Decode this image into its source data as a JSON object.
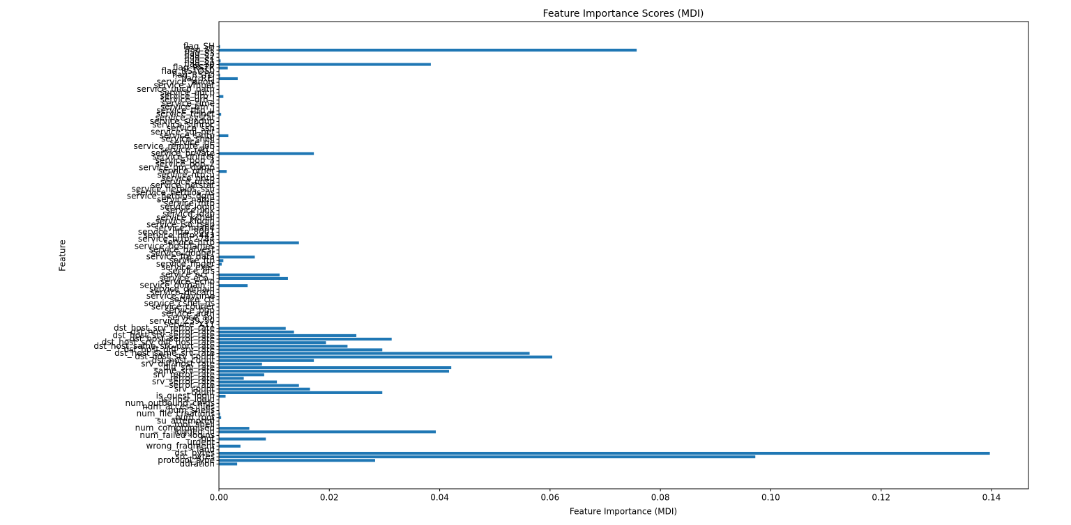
{
  "chart_data": {
    "type": "barh",
    "title": "Feature Importance Scores (MDI)",
    "xlabel": "Feature Importance (MDI)",
    "ylabel": "Feature",
    "color": "#1f77b4",
    "categories": [
      "duration",
      "protocol_type",
      "src_bytes",
      "dst_bytes",
      "land",
      "wrong_fragment",
      "urgent",
      "hot",
      "num_failed_logins",
      "logged_in",
      "num_compromised",
      "root_shell",
      "su_attempted",
      "num_root",
      "num_file_creations",
      "num_shells",
      "num_access_files",
      "num_outbound_cmds",
      "is_host_login",
      "is_guest_login",
      "count",
      "srv_count",
      "serror_rate",
      "srv_serror_rate",
      "rerror_rate",
      "srv_rerror_rate",
      "same_srv_rate",
      "diff_srv_rate",
      "srv_diff_host_rate",
      "dst_host_count",
      "dst_host_srv_count",
      "dst_host_same_srv_rate",
      "dst_host_diff_srv_rate",
      "dst_host_same_src_port_rate",
      "dst_host_srv_diff_host_rate",
      "dst_host_serror_rate",
      "dst_host_srv_serror_rate",
      "dst_host_rerror_rate",
      "dst_host_srv_rerror_rate",
      "service_X11",
      "service_Z39_50",
      "service_aol",
      "service_auth",
      "service_bgp",
      "service_courier",
      "service_csnet_ns",
      "service_ctf",
      "service_daytime",
      "service_discard",
      "service_domain",
      "service_domain_u",
      "service_echo",
      "service_eco_i",
      "service_ecr_i",
      "service_efs",
      "service_exec",
      "service_finger",
      "service_ftp",
      "service_ftp_data",
      "service_gopher",
      "service_harvest",
      "service_hostnames",
      "service_http",
      "service_http_2784",
      "service_http_443",
      "service_http_8001",
      "service_imap4",
      "service_iso_tsap",
      "service_klogin",
      "service_kshell",
      "service_ldap",
      "service_link",
      "service_login",
      "service_mtp",
      "service_name",
      "service_netbios_dgm",
      "service_netbios_ns",
      "service_netbios_ssn",
      "service_netstat",
      "service_nnsp",
      "service_nntp",
      "service_ntp_u",
      "service_other",
      "service_pm_dump",
      "service_pop_2",
      "service_pop_3",
      "service_printer",
      "service_private",
      "service_red_i",
      "service_remote_job",
      "service_rje",
      "service_shell",
      "service_smtp",
      "service_sql_net",
      "service_ssh",
      "service_sunrpc",
      "service_supdup",
      "service_systat",
      "service_telnet",
      "service_tftp_u",
      "service_tim_i",
      "service_time",
      "service_urh_i",
      "service_urp_i",
      "service_uucp",
      "service_uucp_path",
      "service_vmnet",
      "service_whois",
      "flag_REJ",
      "flag_RSTO",
      "flag_RSTOS0",
      "flag_RSTR",
      "flag_S0",
      "flag_S1",
      "flag_S2",
      "flag_S3",
      "flag_SF",
      "flag_SH"
    ],
    "values": [
      0.0033,
      0.0283,
      0.0972,
      0.1397,
      0,
      0.0039,
      0,
      0.0085,
      0,
      0.0393,
      0.0055,
      0.0001,
      0,
      0.0004,
      0.0002,
      0,
      0,
      0,
      0,
      0.0012,
      0.0296,
      0.0165,
      0.0145,
      0.0105,
      0.0045,
      0.0082,
      0.0417,
      0.0421,
      0.0078,
      0.0172,
      0.0604,
      0.0563,
      0.0296,
      0.0233,
      0.0194,
      0.0313,
      0.0249,
      0.0136,
      0.0121,
      0,
      0,
      0,
      0,
      0,
      0,
      0,
      0,
      0,
      0,
      0,
      0.0052,
      0,
      0.0125,
      0.011,
      0,
      0,
      0.0005,
      0.0008,
      0.0065,
      0,
      0,
      0,
      0.0145,
      0,
      0,
      0,
      0,
      0,
      0,
      0,
      0,
      0,
      0,
      0,
      0,
      0,
      0,
      0,
      0,
      0,
      0,
      0,
      0.0014,
      0,
      0,
      0,
      0,
      0.0172,
      0,
      0,
      0,
      0,
      0.0017,
      0,
      0,
      0,
      0,
      0,
      0.0004,
      0,
      0,
      0,
      0,
      0.0008,
      0,
      0,
      0,
      0,
      0.0034,
      0.0002,
      0,
      0.0016,
      0.0384,
      0.0003,
      0,
      0,
      0.0757,
      0.0002
    ],
    "xlim": [
      0,
      0.1467
    ],
    "xticks": [
      {
        "value": 0,
        "label": "0.00"
      },
      {
        "value": 0.02,
        "label": "0.02"
      },
      {
        "value": 0.04,
        "label": "0.04"
      },
      {
        "value": 0.06,
        "label": "0.06"
      },
      {
        "value": 0.08,
        "label": "0.08"
      },
      {
        "value": 0.1,
        "label": "0.10"
      },
      {
        "value": 0.12,
        "label": "0.12"
      },
      {
        "value": 0.14,
        "label": "0.14"
      }
    ],
    "grid": false
  }
}
